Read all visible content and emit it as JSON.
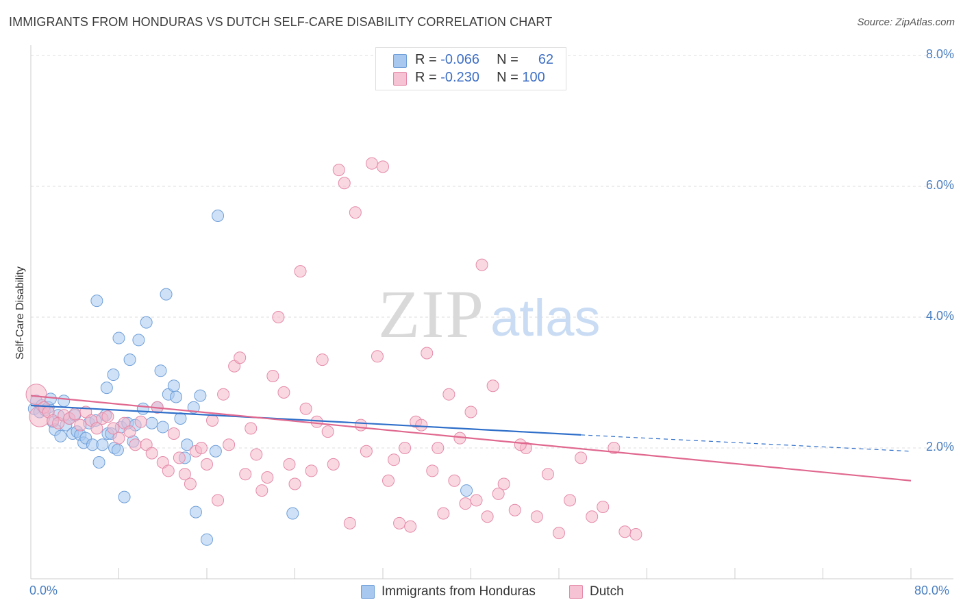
{
  "header": {
    "title": "IMMIGRANTS FROM HONDURAS VS DUTCH SELF-CARE DISABILITY CORRELATION CHART",
    "source": "Source: ZipAtlas.com"
  },
  "legend": {
    "rows": [
      {
        "r_label": "R =",
        "r_value": "-0.066",
        "n_label": "N =",
        "n_value": "62",
        "color": "#a8c8f0"
      },
      {
        "r_label": "R =",
        "r_value": "-0.230",
        "n_label": "N =",
        "n_value": "100",
        "color": "#f5b8cb"
      }
    ]
  },
  "bottom_legend": [
    {
      "label": "Immigrants from Honduras",
      "color": "#a8c8f0"
    },
    {
      "label": "Dutch",
      "color": "#f5b8cb"
    }
  ],
  "watermark": {
    "zip": "ZIP",
    "atlas": "atlas"
  },
  "chart_data": {
    "type": "scatter",
    "title": "IMMIGRANTS FROM HONDURAS VS DUTCH SELF-CARE DISABILITY CORRELATION CHART",
    "ylabel": "Self-Care Disability",
    "xlim": [
      0,
      80
    ],
    "ylim": [
      0,
      8.0
    ],
    "x_tick_labels": [
      "0.0%",
      "80.0%"
    ],
    "y_ticks": [
      2.0,
      4.0,
      6.0,
      8.0
    ],
    "y_tick_labels": [
      "2.0%",
      "4.0%",
      "6.0%",
      "8.0%"
    ],
    "grid": true,
    "legend_position": "top-center",
    "series": [
      {
        "name": "Immigrants from Honduras",
        "color": "#a8c8f0",
        "stroke": "#6f9fd8",
        "trend_color": "#2f6fc9",
        "trend_solid": [
          [
            0,
            2.65
          ],
          [
            50,
            2.2
          ]
        ],
        "trend_dashed": [
          [
            50,
            2.2
          ],
          [
            80,
            1.95
          ]
        ],
        "points": [
          [
            0.3,
            2.6
          ],
          [
            0.5,
            2.72
          ],
          [
            0.8,
            2.55
          ],
          [
            1.0,
            2.65
          ],
          [
            1.3,
            2.58
          ],
          [
            1.6,
            2.62
          ],
          [
            1.8,
            2.75
          ],
          [
            2.0,
            2.4
          ],
          [
            2.2,
            2.28
          ],
          [
            2.5,
            2.5
          ],
          [
            2.7,
            2.18
          ],
          [
            3.0,
            2.72
          ],
          [
            3.2,
            2.35
          ],
          [
            3.5,
            2.45
          ],
          [
            3.8,
            2.22
          ],
          [
            4.0,
            2.5
          ],
          [
            4.2,
            2.25
          ],
          [
            4.5,
            2.2
          ],
          [
            4.8,
            2.08
          ],
          [
            5.0,
            2.15
          ],
          [
            5.3,
            2.38
          ],
          [
            5.6,
            2.05
          ],
          [
            5.9,
            2.42
          ],
          [
            6.2,
            1.78
          ],
          [
            6.5,
            2.05
          ],
          [
            6.8,
            2.5
          ],
          [
            7.0,
            2.22
          ],
          [
            7.3,
            2.22
          ],
          [
            7.6,
            2.0
          ],
          [
            7.9,
            1.97
          ],
          [
            8.2,
            2.32
          ],
          [
            8.5,
            1.25
          ],
          [
            8.8,
            2.38
          ],
          [
            9.3,
            2.1
          ],
          [
            9.8,
            3.65
          ],
          [
            10.2,
            2.6
          ],
          [
            11.0,
            2.38
          ],
          [
            11.5,
            2.62
          ],
          [
            12.0,
            2.32
          ],
          [
            12.5,
            2.82
          ],
          [
            13.0,
            2.95
          ],
          [
            13.6,
            2.45
          ],
          [
            14.2,
            2.05
          ],
          [
            14.8,
            2.62
          ],
          [
            15.4,
            2.8
          ],
          [
            16.0,
            0.6
          ],
          [
            6.9,
            2.92
          ],
          [
            6.0,
            4.25
          ],
          [
            7.5,
            3.12
          ],
          [
            8.0,
            3.68
          ],
          [
            9.0,
            3.35
          ],
          [
            10.5,
            3.92
          ],
          [
            11.8,
            3.18
          ],
          [
            12.3,
            4.35
          ],
          [
            13.2,
            2.78
          ],
          [
            9.5,
            2.35
          ],
          [
            14.0,
            1.85
          ],
          [
            15.0,
            1.02
          ],
          [
            17.0,
            5.55
          ],
          [
            16.8,
            1.95
          ],
          [
            23.8,
            1.0
          ],
          [
            39.6,
            1.35
          ]
        ]
      },
      {
        "name": "Dutch",
        "color": "#f5b8cb",
        "stroke": "#e48aa8",
        "trend_color": "#e0688f",
        "trend_solid": [
          [
            0,
            2.8
          ],
          [
            80,
            1.5
          ]
        ],
        "points": [
          [
            0.5,
            2.82
          ],
          [
            0.8,
            2.48
          ],
          [
            1.2,
            2.62
          ],
          [
            1.6,
            2.55
          ],
          [
            2.0,
            2.42
          ],
          [
            2.5,
            2.38
          ],
          [
            3.0,
            2.5
          ],
          [
            3.5,
            2.45
          ],
          [
            4.0,
            2.52
          ],
          [
            4.5,
            2.35
          ],
          [
            5.0,
            2.55
          ],
          [
            5.5,
            2.42
          ],
          [
            6.0,
            2.3
          ],
          [
            6.5,
            2.45
          ],
          [
            7.0,
            2.48
          ],
          [
            7.5,
            2.3
          ],
          [
            8.0,
            2.15
          ],
          [
            8.5,
            2.38
          ],
          [
            9.0,
            2.25
          ],
          [
            9.5,
            2.05
          ],
          [
            10.0,
            2.4
          ],
          [
            10.5,
            2.05
          ],
          [
            11.0,
            1.92
          ],
          [
            11.5,
            2.62
          ],
          [
            12.0,
            1.78
          ],
          [
            12.5,
            1.65
          ],
          [
            13.0,
            2.22
          ],
          [
            13.5,
            1.85
          ],
          [
            14.0,
            1.6
          ],
          [
            14.5,
            1.45
          ],
          [
            15.0,
            1.95
          ],
          [
            15.5,
            2.0
          ],
          [
            16.0,
            1.75
          ],
          [
            16.5,
            2.42
          ],
          [
            17.0,
            1.2
          ],
          [
            17.5,
            2.82
          ],
          [
            18.0,
            2.05
          ],
          [
            18.5,
            3.25
          ],
          [
            19.0,
            3.38
          ],
          [
            19.5,
            1.6
          ],
          [
            20.0,
            2.3
          ],
          [
            20.5,
            1.9
          ],
          [
            21.0,
            1.35
          ],
          [
            21.5,
            1.55
          ],
          [
            22.0,
            3.1
          ],
          [
            22.5,
            4.0
          ],
          [
            23.0,
            2.85
          ],
          [
            23.5,
            1.75
          ],
          [
            24.0,
            1.45
          ],
          [
            24.5,
            4.7
          ],
          [
            25.0,
            2.6
          ],
          [
            25.5,
            1.65
          ],
          [
            26.0,
            2.4
          ],
          [
            26.5,
            3.35
          ],
          [
            27.0,
            2.25
          ],
          [
            27.5,
            1.75
          ],
          [
            28.0,
            6.25
          ],
          [
            28.5,
            6.05
          ],
          [
            29.0,
            0.85
          ],
          [
            29.5,
            5.6
          ],
          [
            30.0,
            2.35
          ],
          [
            30.5,
            1.95
          ],
          [
            31.0,
            6.35
          ],
          [
            31.5,
            3.4
          ],
          [
            32.0,
            6.3
          ],
          [
            32.5,
            1.5
          ],
          [
            33.0,
            1.82
          ],
          [
            33.5,
            0.85
          ],
          [
            34.0,
            2.0
          ],
          [
            34.5,
            0.8
          ],
          [
            35.0,
            2.4
          ],
          [
            36.0,
            3.45
          ],
          [
            36.5,
            1.65
          ],
          [
            37.0,
            2.0
          ],
          [
            37.5,
            1.0
          ],
          [
            38.0,
            2.82
          ],
          [
            38.5,
            1.5
          ],
          [
            39.0,
            2.15
          ],
          [
            39.5,
            1.15
          ],
          [
            40.0,
            2.55
          ],
          [
            40.5,
            1.2
          ],
          [
            41.0,
            4.8
          ],
          [
            41.5,
            0.95
          ],
          [
            42.0,
            2.95
          ],
          [
            43.0,
            1.45
          ],
          [
            44.0,
            1.05
          ],
          [
            45.0,
            2.0
          ],
          [
            46.0,
            0.95
          ],
          [
            47.0,
            1.6
          ],
          [
            48.0,
            0.7
          ],
          [
            49.0,
            1.2
          ],
          [
            50.0,
            1.85
          ],
          [
            51.0,
            0.95
          ],
          [
            52.0,
            1.1
          ],
          [
            53.0,
            2.0
          ],
          [
            54.0,
            0.72
          ],
          [
            55.0,
            0.68
          ],
          [
            42.5,
            1.3
          ],
          [
            44.5,
            2.05
          ],
          [
            35.5,
            2.35
          ]
        ]
      }
    ]
  }
}
